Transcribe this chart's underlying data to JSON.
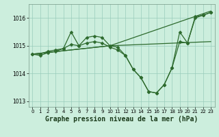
{
  "bg_color": "#cceedd",
  "grid_color": "#99ccbb",
  "line_color": "#2d6a2d",
  "marker_color": "#2d6a2d",
  "xlabel": "Graphe pression niveau de la mer (hPa)",
  "xlabel_fontsize": 7,
  "xlim": [
    -0.5,
    23.5
  ],
  "ylim": [
    1012.8,
    1016.5
  ],
  "yticks": [
    1013,
    1014,
    1015,
    1016
  ],
  "xticks": [
    0,
    1,
    2,
    3,
    4,
    5,
    6,
    7,
    8,
    9,
    10,
    11,
    12,
    13,
    14,
    15,
    16,
    17,
    18,
    19,
    20,
    21,
    22,
    23
  ],
  "series": [
    {
      "x": [
        0,
        1,
        2,
        3,
        4,
        5,
        6,
        7,
        8,
        9,
        10,
        11,
        12,
        13,
        14,
        15,
        16,
        17,
        18,
        19,
        20,
        21,
        22,
        23
      ],
      "y": [
        1014.7,
        1014.7,
        1014.8,
        1014.85,
        1014.9,
        1015.05,
        1015.0,
        1015.1,
        1015.15,
        1015.1,
        1014.95,
        1014.85,
        1014.65,
        1014.15,
        1013.85,
        1013.35,
        1013.3,
        1013.6,
        1014.2,
        1015.15,
        1015.1,
        1016.0,
        1016.1,
        1016.2
      ],
      "has_markers": true
    },
    {
      "x": [
        0,
        1,
        2,
        3,
        4,
        5,
        6,
        7,
        8,
        9,
        10,
        11,
        12,
        13,
        14,
        15,
        16,
        17,
        18,
        19,
        20,
        21,
        22,
        23
      ],
      "y": [
        1014.7,
        1014.65,
        1014.75,
        1014.8,
        1014.9,
        1015.5,
        1015.0,
        1015.3,
        1015.35,
        1015.3,
        1015.0,
        1014.95,
        1014.65,
        1014.15,
        1013.85,
        1013.35,
        1013.3,
        1013.6,
        1014.2,
        1015.5,
        1015.1,
        1016.05,
        1016.1,
        1016.2
      ],
      "has_markers": true
    },
    {
      "x": [
        0,
        10,
        23
      ],
      "y": [
        1014.7,
        1015.0,
        1016.25
      ],
      "has_markers": false
    },
    {
      "x": [
        0,
        10,
        23
      ],
      "y": [
        1014.7,
        1015.0,
        1015.15
      ],
      "has_markers": false
    }
  ]
}
